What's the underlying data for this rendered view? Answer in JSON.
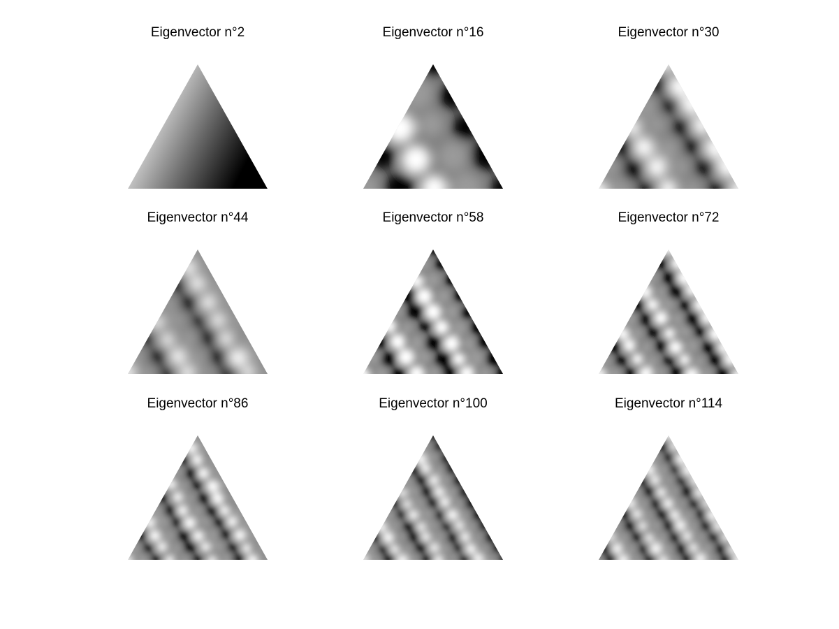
{
  "figure": {
    "background": "#ffffff",
    "text_color": "#000000",
    "colormap": "grayscale",
    "panels": [
      {
        "title": "Eigenvector n°2",
        "eigen_index": 2
      },
      {
        "title": "Eigenvector n°16",
        "eigen_index": 16
      },
      {
        "title": "Eigenvector n°30",
        "eigen_index": 30
      },
      {
        "title": "Eigenvector n°44",
        "eigen_index": 44
      },
      {
        "title": "Eigenvector n°58",
        "eigen_index": 58
      },
      {
        "title": "Eigenvector n°72",
        "eigen_index": 72
      },
      {
        "title": "Eigenvector n°86",
        "eigen_index": 86
      },
      {
        "title": "Eigenvector n°100",
        "eigen_index": 100
      },
      {
        "title": "Eigenvector n°114",
        "eigen_index": 114
      }
    ]
  }
}
